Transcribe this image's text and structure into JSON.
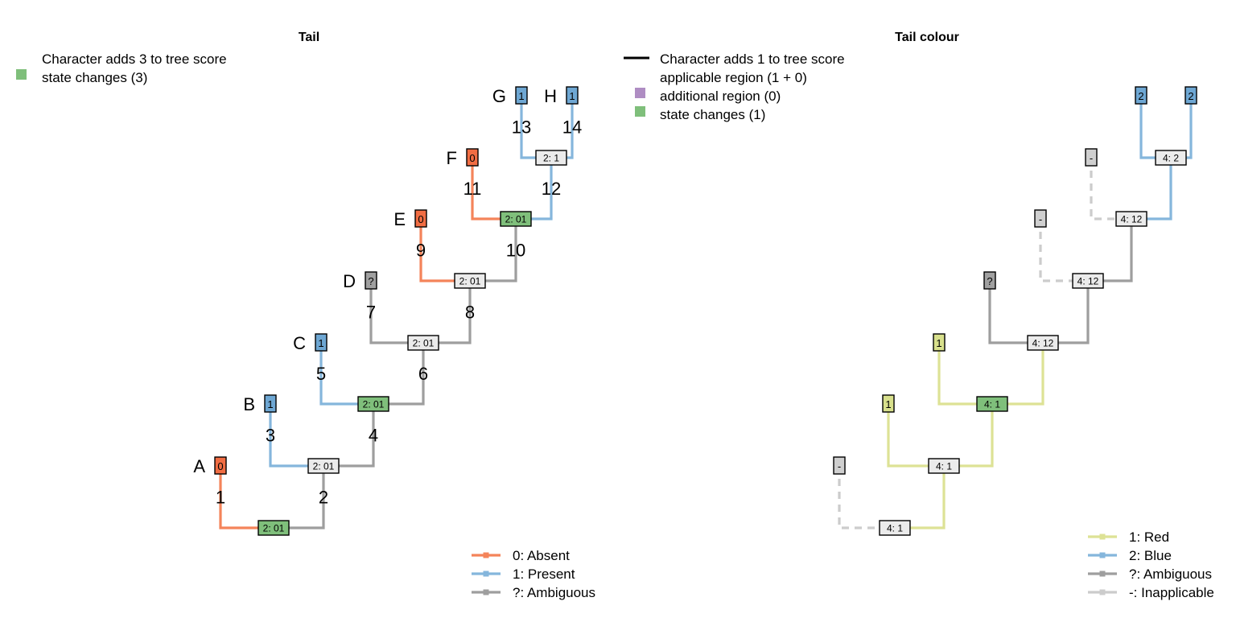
{
  "panels": [
    {
      "title": "Tail",
      "info": [
        {
          "swatch": "",
          "text": "Character adds 3 to tree score"
        },
        {
          "swatch": "#7fbf7b",
          "text": "state changes (3)"
        }
      ],
      "tips": [
        {
          "name": "A",
          "state": "0",
          "color": "#f16d43"
        },
        {
          "name": "B",
          "state": "1",
          "color": "#6ea7d3"
        },
        {
          "name": "C",
          "state": "1",
          "color": "#6ea7d3"
        },
        {
          "name": "D",
          "state": "?",
          "color": "#a0a0a0"
        },
        {
          "name": "E",
          "state": "0",
          "color": "#f16d43"
        },
        {
          "name": "F",
          "state": "0",
          "color": "#f16d43"
        },
        {
          "name": "G",
          "state": "1",
          "color": "#6ea7d3"
        },
        {
          "name": "H",
          "state": "1",
          "color": "#6ea7d3"
        }
      ],
      "nodes": [
        {
          "label": "2: 01",
          "fill": "#7fbf7b"
        },
        {
          "label": "2: 01",
          "fill": "#ebebeb"
        },
        {
          "label": "2: 01",
          "fill": "#7fbf7b"
        },
        {
          "label": "2: 01",
          "fill": "#ebebeb"
        },
        {
          "label": "2: 01",
          "fill": "#ebebeb"
        },
        {
          "label": "2: 01",
          "fill": "#7fbf7b"
        },
        {
          "label": "2: 1",
          "fill": "#ebebeb"
        }
      ],
      "edges": [
        {
          "label": "1",
          "color": "#f4845a",
          "dashed": false
        },
        {
          "label": "2",
          "color": "#9e9e9e",
          "dashed": false
        },
        {
          "label": "3",
          "color": "#85b6dc",
          "dashed": false
        },
        {
          "label": "4",
          "color": "#9e9e9e",
          "dashed": false
        },
        {
          "label": "5",
          "color": "#85b6dc",
          "dashed": false
        },
        {
          "label": "6",
          "color": "#9e9e9e",
          "dashed": false
        },
        {
          "label": "7",
          "color": "#9e9e9e",
          "dashed": false
        },
        {
          "label": "8",
          "color": "#9e9e9e",
          "dashed": false
        },
        {
          "label": "9",
          "color": "#f4845a",
          "dashed": false
        },
        {
          "label": "10",
          "color": "#9e9e9e",
          "dashed": false
        },
        {
          "label": "11",
          "color": "#f4845a",
          "dashed": false
        },
        {
          "label": "12",
          "color": "#85b6dc",
          "dashed": false
        },
        {
          "label": "13",
          "color": "#85b6dc",
          "dashed": false
        },
        {
          "label": "14",
          "color": "#85b6dc",
          "dashed": false
        }
      ],
      "legend": [
        {
          "label": "0: Absent",
          "color": "#f4845a"
        },
        {
          "label": "1: Present",
          "color": "#85b6dc"
        },
        {
          "label": "?: Ambiguous",
          "color": "#9e9e9e"
        }
      ]
    },
    {
      "title": "Tail colour",
      "info": [
        {
          "swatch": "line",
          "text": "Character adds 1 to tree score"
        },
        {
          "swatch": "line",
          "text": "applicable region (1 + 0)"
        },
        {
          "swatch": "#af8dc3",
          "text": "additional region (0)"
        },
        {
          "swatch": "#7fbf7b",
          "text": "state changes (1)"
        }
      ],
      "tips": [
        {
          "name": "",
          "state": "-",
          "color": "#cfcfcf"
        },
        {
          "name": "",
          "state": "1",
          "color": "#d8e08c"
        },
        {
          "name": "",
          "state": "1",
          "color": "#d8e08c"
        },
        {
          "name": "",
          "state": "?",
          "color": "#a0a0a0"
        },
        {
          "name": "",
          "state": "-",
          "color": "#cfcfcf"
        },
        {
          "name": "",
          "state": "-",
          "color": "#cfcfcf"
        },
        {
          "name": "",
          "state": "2",
          "color": "#6ea7d3"
        },
        {
          "name": "",
          "state": "2",
          "color": "#6ea7d3"
        }
      ],
      "nodes": [
        {
          "label": "4: 1",
          "fill": "#ebebeb"
        },
        {
          "label": "4: 1",
          "fill": "#ebebeb"
        },
        {
          "label": "4: 1",
          "fill": "#7fbf7b"
        },
        {
          "label": "4: 12",
          "fill": "#ebebeb"
        },
        {
          "label": "4: 12",
          "fill": "#ebebeb"
        },
        {
          "label": "4: 12",
          "fill": "#ebebeb"
        },
        {
          "label": "4: 2",
          "fill": "#ebebeb"
        }
      ],
      "edges": [
        {
          "label": "",
          "color": "#cccccc",
          "dashed": true
        },
        {
          "label": "",
          "color": "#dde295",
          "dashed": false
        },
        {
          "label": "",
          "color": "#dde295",
          "dashed": false
        },
        {
          "label": "",
          "color": "#dde295",
          "dashed": false
        },
        {
          "label": "",
          "color": "#dde295",
          "dashed": false
        },
        {
          "label": "",
          "color": "#dde295",
          "dashed": false
        },
        {
          "label": "",
          "color": "#9e9e9e",
          "dashed": false
        },
        {
          "label": "",
          "color": "#9e9e9e",
          "dashed": false
        },
        {
          "label": "",
          "color": "#cccccc",
          "dashed": true
        },
        {
          "label": "",
          "color": "#9e9e9e",
          "dashed": false
        },
        {
          "label": "",
          "color": "#cccccc",
          "dashed": true
        },
        {
          "label": "",
          "color": "#85b6dc",
          "dashed": false
        },
        {
          "label": "",
          "color": "#85b6dc",
          "dashed": false
        },
        {
          "label": "",
          "color": "#85b6dc",
          "dashed": false
        }
      ],
      "legend": [
        {
          "label": "1: Red",
          "color": "#dde295"
        },
        {
          "label": "2: Blue",
          "color": "#85b6dc"
        },
        {
          "label": "?: Ambiguous",
          "color": "#9e9e9e"
        },
        {
          "label": "-: Inapplicable",
          "color": "#cccccc"
        }
      ]
    }
  ]
}
